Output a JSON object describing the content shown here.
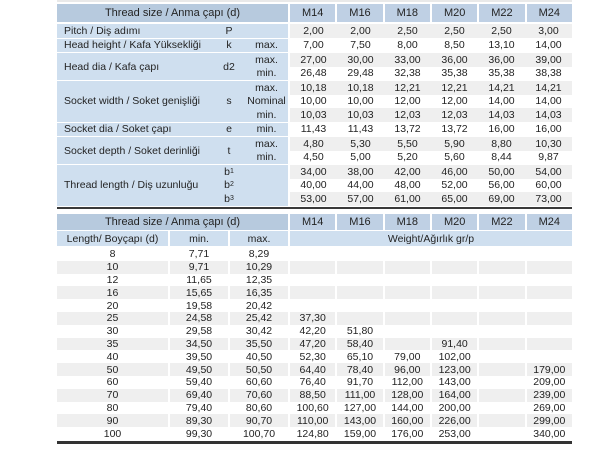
{
  "colors": {
    "header_blue": "#b7cade",
    "column_header_blue": "#bfd0e4",
    "cell_blue": "#cfdfef",
    "stripe_gray": "#efefef",
    "rule_dark": "#3a3a3a",
    "text": "#232323"
  },
  "table1": {
    "header": {
      "label": "Thread size / Anma çapı (d)",
      "columns": [
        "M14",
        "M16",
        "M18",
        "M20",
        "M22",
        "M24"
      ]
    },
    "groups": [
      {
        "label": "Pitch / Diş adımı",
        "symbol": "P",
        "lines": [
          {
            "tag": "",
            "values": [
              "2,00",
              "2,00",
              "2,50",
              "2,50",
              "2,50",
              "3,00"
            ]
          }
        ]
      },
      {
        "label": "Head height / Kafa Yüksekliği",
        "symbol": "k",
        "lines": [
          {
            "tag": "max.",
            "values": [
              "7,00",
              "7,50",
              "8,00",
              "8,50",
              "13,10",
              "14,00"
            ]
          }
        ]
      },
      {
        "label": "Head dia / Kafa çapı",
        "symbol": "d2",
        "lines": [
          {
            "tag": "max.",
            "values": [
              "27,00",
              "30,00",
              "33,00",
              "36,00",
              "36,00",
              "39,00"
            ]
          },
          {
            "tag": "min.",
            "values": [
              "26,48",
              "29,48",
              "32,38",
              "35,38",
              "35,38",
              "38,38"
            ]
          }
        ]
      },
      {
        "label": "Socket width / Soket genişliği",
        "symbol": "s",
        "lines": [
          {
            "tag": "max.",
            "values": [
              "10,18",
              "10,18",
              "12,21",
              "12,21",
              "14,21",
              "14,21"
            ]
          },
          {
            "tag": "Nominal",
            "values": [
              "10,00",
              "10,00",
              "12,00",
              "12,00",
              "14,00",
              "14,00"
            ]
          },
          {
            "tag": "min.",
            "values": [
              "10,03",
              "10,03",
              "12,03",
              "12,03",
              "14,03",
              "14,03"
            ]
          }
        ]
      },
      {
        "label": "Socket dia / Soket çapı",
        "symbol": "e",
        "lines": [
          {
            "tag": "min.",
            "values": [
              "11,43",
              "11,43",
              "13,72",
              "13,72",
              "16,00",
              "16,00"
            ]
          }
        ]
      },
      {
        "label": "Socket depth / Soket derinliği",
        "symbol": "t",
        "lines": [
          {
            "tag": "max.",
            "values": [
              "4,80",
              "5,30",
              "5,50",
              "5,90",
              "8,80",
              "10,30"
            ]
          },
          {
            "tag": "min.",
            "values": [
              "4,50",
              "5,00",
              "5,20",
              "5,60",
              "8,44",
              "9,87"
            ]
          }
        ]
      },
      {
        "label": "Thread length / Diş uzunluğu",
        "symbol": "b",
        "tag_in_symbol_col": true,
        "lines": [
          {
            "tag": "b1",
            "values": [
              "34,00",
              "38,00",
              "42,00",
              "46,00",
              "50,00",
              "54,00"
            ]
          },
          {
            "tag": "b2",
            "values": [
              "40,00",
              "44,00",
              "48,00",
              "52,00",
              "56,00",
              "60,00"
            ]
          },
          {
            "tag": "b3",
            "values": [
              "53,00",
              "57,00",
              "61,00",
              "65,00",
              "69,00",
              "73,00"
            ]
          }
        ]
      }
    ]
  },
  "table2": {
    "header": {
      "label": "Thread size / Anma çapı (d)",
      "columns": [
        "M14",
        "M16",
        "M18",
        "M20",
        "M22",
        "M24"
      ]
    },
    "subheader": {
      "length": "Length/ Boyçapı (d)",
      "min": "min.",
      "max": "max.",
      "weight": "Weight/Ağırlık gr/p"
    },
    "rows": [
      {
        "length": "8",
        "min": "7,71",
        "max": "8,29",
        "weights": [
          "",
          "",
          "",
          "",
          "",
          ""
        ]
      },
      {
        "length": "10",
        "min": "9,71",
        "max": "10,29",
        "weights": [
          "",
          "",
          "",
          "",
          "",
          ""
        ]
      },
      {
        "length": "12",
        "min": "11,65",
        "max": "12,35",
        "weights": [
          "",
          "",
          "",
          "",
          "",
          ""
        ]
      },
      {
        "length": "16",
        "min": "15,65",
        "max": "16,35",
        "weights": [
          "",
          "",
          "",
          "",
          "",
          ""
        ]
      },
      {
        "length": "20",
        "min": "19,58",
        "max": "20,42",
        "weights": [
          "",
          "",
          "",
          "",
          "",
          ""
        ]
      },
      {
        "length": "25",
        "min": "24,58",
        "max": "25,42",
        "weights": [
          "37,30",
          "",
          "",
          "",
          "",
          ""
        ]
      },
      {
        "length": "30",
        "min": "29,58",
        "max": "30,42",
        "weights": [
          "42,20",
          "51,80",
          "",
          "",
          "",
          ""
        ]
      },
      {
        "length": "35",
        "min": "34,50",
        "max": "35,50",
        "weights": [
          "47,20",
          "58,40",
          "",
          "91,40",
          "",
          ""
        ]
      },
      {
        "length": "40",
        "min": "39,50",
        "max": "40,50",
        "weights": [
          "52,30",
          "65,10",
          "79,00",
          "102,00",
          "",
          ""
        ]
      },
      {
        "length": "50",
        "min": "49,50",
        "max": "50,50",
        "weights": [
          "64,40",
          "78,40",
          "96,00",
          "123,00",
          "",
          "179,00"
        ]
      },
      {
        "length": "60",
        "min": "59,40",
        "max": "60,60",
        "weights": [
          "76,40",
          "91,70",
          "112,00",
          "143,00",
          "",
          "209,00"
        ]
      },
      {
        "length": "70",
        "min": "69,40",
        "max": "70,60",
        "weights": [
          "88,50",
          "111,00",
          "128,00",
          "164,00",
          "",
          "239,00"
        ]
      },
      {
        "length": "80",
        "min": "79,40",
        "max": "80,60",
        "weights": [
          "100,60",
          "127,00",
          "144,00",
          "200,00",
          "",
          "269,00"
        ]
      },
      {
        "length": "90",
        "min": "89,30",
        "max": "90,70",
        "weights": [
          "110,00",
          "143,00",
          "160,00",
          "226,00",
          "",
          "299,00"
        ]
      },
      {
        "length": "100",
        "min": "99,30",
        "max": "100,70",
        "weights": [
          "124,80",
          "159,00",
          "176,00",
          "253,00",
          "",
          "340,00"
        ]
      }
    ]
  }
}
